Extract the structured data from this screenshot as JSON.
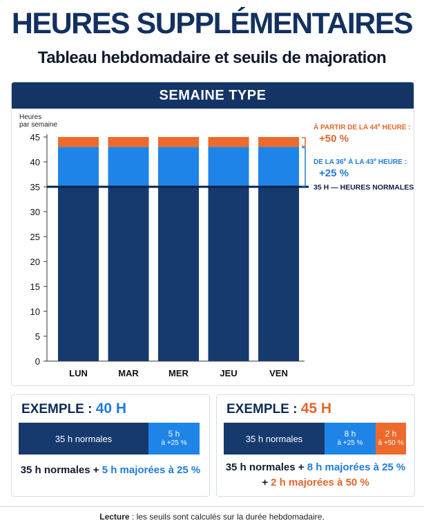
{
  "header": {
    "title": "HEURES SUPPLÉMENTAIRES",
    "subtitle": "Tableau hebdomadaire et seuils de majoration"
  },
  "panel": {
    "title": "SEMAINE TYPE"
  },
  "chart_data": {
    "type": "bar",
    "stacked": true,
    "ylabel": "Heures par semaine",
    "ylim": [
      0,
      45
    ],
    "yticks": [
      0,
      5,
      10,
      15,
      20,
      25,
      30,
      35,
      40,
      45
    ],
    "categories": [
      "LUN",
      "MAR",
      "MER",
      "JEU",
      "VEN"
    ],
    "series": [
      {
        "values": [
          35,
          35,
          35,
          35,
          35
        ],
        "color": "#163a6e"
      },
      {
        "values": [
          8,
          8,
          8,
          8,
          8
        ],
        "color": "#1e84e8"
      },
      {
        "values": [
          2,
          2,
          2,
          2,
          2
        ],
        "color": "#ee6a2c"
      }
    ],
    "reference_line": {
      "value": 35,
      "label": "35 H — HEURES NORMALES",
      "color": "#0d1f44"
    },
    "annotations": [
      {
        "text_pre": "À PARTIR DE LA 44",
        "sup": "e",
        "text_post": " HEURE :",
        "value": "+50 %",
        "color": "#e4642b",
        "range": [
          43,
          45
        ]
      },
      {
        "text_pre": "DE LA 36",
        "sup": "e",
        "text_mid": " À LA 43",
        "sup2": "e",
        "text_post": " HEURE :",
        "value": "+25 %",
        "color": "#1e7bdc",
        "range": [
          35,
          43
        ]
      }
    ],
    "grid": false
  },
  "example_40": {
    "title_pre": "EXEMPLE :",
    "title_num": "40 H",
    "seg_normal": "35 h normales",
    "seg_25_a": "5 h",
    "seg_25_b": "à +25 %",
    "line1_a": "35 h normales  +",
    "line1_b": "5 h majorées à 25 %"
  },
  "example_45": {
    "title_pre": "EXEMPLE :",
    "title_num": "45 H",
    "seg_normal": "35 h normales",
    "seg_25_a": "8 h",
    "seg_25_b": "à +25 %",
    "seg_50_a": "2 h",
    "seg_50_b": "à +50 %",
    "line1_a": "35 h normales  +",
    "line1_b": "8 h majorées à 25 %",
    "line2_a": "+",
    "line2_b": "2 h majorées à 50 %"
  },
  "footer": {
    "label": "Lecture",
    "text": " : les seuils sont calculés sur la durée hebdomadaire."
  },
  "colors": {
    "navy": "#163a6e",
    "blue": "#1e84e8",
    "orange": "#ee6a2c"
  }
}
